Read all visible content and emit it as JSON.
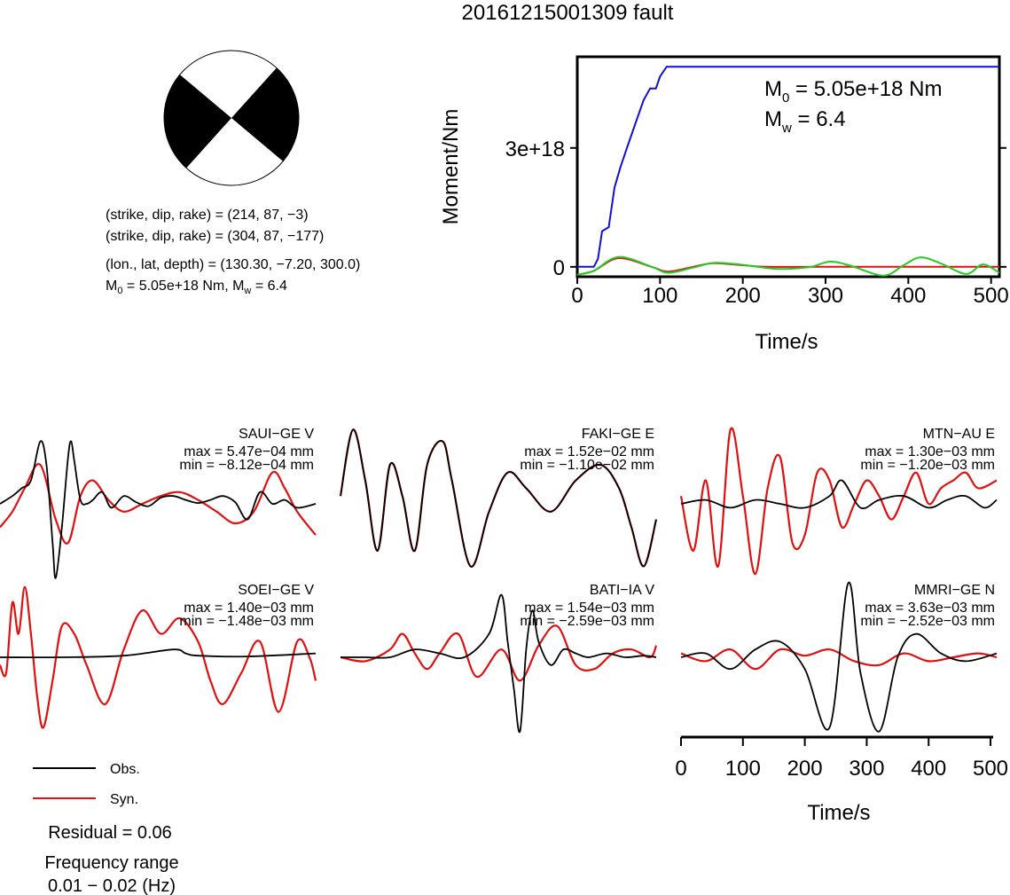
{
  "title": "20161215001309 fault",
  "beachball": {
    "color_fill": "#000000",
    "lines": [
      "(strike, dip, rake) = (214, 87, −3)",
      "(strike, dip, rake) = (304, 87, −177)",
      "(lon., lat, depth) = (130.30, −7.20, 300.0)"
    ],
    "m0_line": {
      "M": "M",
      "sub": "0",
      "rest": " = 5.05e+18 Nm, M",
      "sub2": "w",
      "rest2": " = 6.4"
    }
  },
  "moment_plot": {
    "ylabel": "Moment/Nm",
    "xlabel": "Time/s",
    "yticks": [
      "0",
      "3e+18"
    ],
    "xticks": [
      "0",
      "100",
      "200",
      "300",
      "400",
      "500"
    ],
    "m0_text": {
      "M": "M",
      "sub": "0",
      "rest": " = 5.05e+18 Nm"
    },
    "mw_text": {
      "M": "M",
      "sub": "w",
      "rest": " = 6.4"
    }
  },
  "traces": [
    {
      "station": "SAUI−GE V",
      "max": "max = 5.47e−04 mm",
      "min": "min = −8.12e−04 mm"
    },
    {
      "station": "FAKI−GE E",
      "max": "max = 1.52e−02 mm",
      "min": "min = −1.10e−02 mm"
    },
    {
      "station": "MTN−AU E",
      "max": "max = 1.30e−03 mm",
      "min": "min = −1.20e−03 mm"
    },
    {
      "station": "SOEI−GE V",
      "max": "max = 1.40e−03 mm",
      "min": "min = −1.48e−03 mm"
    },
    {
      "station": "BATI−IA V",
      "max": "max = 1.54e−03 mm",
      "min": "min = −2.59e−03 mm"
    },
    {
      "station": "MMRI−GE N",
      "max": "max = 3.63e−03 mm",
      "min": "min = −2.52e−03 mm"
    }
  ],
  "trace_axis": {
    "xlabel": "Time/s",
    "xticks": [
      "0",
      "100",
      "200",
      "300",
      "400",
      "500"
    ]
  },
  "legend": {
    "obs": "Obs.",
    "syn": "Syn."
  },
  "residual": "Residual = 0.06",
  "freq_label": "Frequency range",
  "freq_range": "0.01 − 0.02 (Hz)",
  "colors": {
    "obs": "#000000",
    "syn": "#e01010",
    "moment_rate": "#1010d0",
    "green": "#22cc22"
  },
  "chart_data": [
    {
      "type": "line",
      "title": "20161215001309 fault",
      "xlabel": "Time/s",
      "ylabel": "Moment/Nm",
      "xlim": [
        0,
        510
      ],
      "ylim": [
        -2.5e+17,
        5.3e+18
      ],
      "series": [
        {
          "x": [
            0,
            10,
            20,
            25,
            30,
            38,
            45,
            52,
            60,
            70,
            80,
            88,
            95,
            100,
            108,
            115,
            200,
            300,
            400,
            510
          ],
          "y": [
            0,
            0,
            0,
            2e+17,
            9e+17,
            1e+18,
            2e+18,
            2.5e+18,
            3e+18,
            3.6e+18,
            4.2e+18,
            4.5e+18,
            4.5e+18,
            4.8e+18,
            5.05e+18,
            5.05e+18,
            5.05e+18,
            5.05e+18,
            5.05e+18,
            5.05e+18
          ]
        },
        {
          "x": [
            0,
            20,
            50,
            90,
            110,
            140,
            165,
            200,
            240,
            280,
            305,
            330,
            370,
            395,
            415,
            440,
            470,
            490,
            510
          ],
          "y": [
            -2e+17,
            -1e+17,
            2.5e+17,
            0,
            -1.5e+17,
            -2e+16,
            1e+17,
            5e+16,
            -5e+16,
            -1e+16,
            1.3e+17,
            3e+16,
            -2.2e+17,
            5e+16,
            2.4e+17,
            8e+16,
            -1.8e+17,
            6e+16,
            -1.5e+17
          ]
        },
        {
          "x": [
            0,
            20,
            50,
            90,
            110,
            140,
            165,
            200,
            230,
            300,
            400,
            510
          ],
          "y": [
            -2e+17,
            -1e+17,
            2.2e+17,
            0,
            -1.2e+17,
            0,
            9e+16,
            4e+16,
            0,
            0,
            0,
            0
          ]
        }
      ]
    },
    {
      "type": "line",
      "title": "SAUI−GE V",
      "xlim": [
        0,
        510
      ],
      "ylim": [
        -1,
        1
      ],
      "series": [
        {
          "name": "Obs.",
          "x": [
            0,
            20,
            35,
            50,
            65,
            75,
            85,
            90,
            100,
            110,
            115,
            120,
            130,
            140,
            150,
            165,
            180,
            200,
            220,
            240,
            260,
            280,
            300,
            320,
            340,
            360,
            380,
            400,
            420,
            440,
            460,
            480,
            510
          ],
          "y": [
            0,
            0.1,
            0.2,
            0.3,
            0.8,
            0.5,
            -0.5,
            -0.95,
            -0.3,
            0.6,
            0.8,
            0.55,
            0.05,
            0,
            0.05,
            0.15,
            -0.05,
            0.1,
            0.02,
            -0.03,
            0.08,
            0.1,
            0.05,
            0.01,
            0.05,
            0.1,
            0.02,
            -0.2,
            0.15,
            0.0,
            0.05,
            -0.05,
            0
          ]
        },
        {
          "name": "Syn.",
          "x": [
            0,
            20,
            40,
            65,
            90,
            110,
            130,
            150,
            175,
            200,
            230,
            260,
            290,
            320,
            350,
            380,
            410,
            440,
            460,
            480,
            510
          ],
          "y": [
            -0.3,
            -0.1,
            0.2,
            0.5,
            -0.2,
            -0.5,
            0.1,
            0.3,
            0.05,
            -0.1,
            0,
            0.1,
            0.15,
            0.05,
            -0.1,
            -0.25,
            -0.1,
            0.4,
            0.2,
            -0.1,
            -0.4
          ]
        }
      ]
    },
    {
      "type": "line",
      "title": "FAKI−GE E",
      "xlim": [
        0,
        510
      ],
      "ylim": [
        -1,
        1
      ],
      "series": [
        {
          "name": "Obs.",
          "x": [
            0,
            20,
            40,
            60,
            80,
            100,
            120,
            140,
            165,
            180,
            210,
            240,
            270,
            300,
            340,
            380,
            420,
            450,
            470,
            490,
            510
          ],
          "y": [
            0.1,
            0.95,
            0.3,
            -0.6,
            0.5,
            0.1,
            -0.6,
            0.5,
            0.8,
            0.3,
            -0.8,
            -0.1,
            0.4,
            0.2,
            -0.1,
            0.3,
            0.5,
            0.2,
            -0.3,
            -0.8,
            -0.2
          ]
        },
        {
          "name": "Syn.",
          "x": [
            0,
            20,
            40,
            60,
            80,
            100,
            120,
            140,
            165,
            180,
            210,
            240,
            270,
            300,
            340,
            380,
            420,
            450,
            470,
            490,
            510
          ],
          "y": [
            0.1,
            0.95,
            0.3,
            -0.6,
            0.5,
            0.1,
            -0.6,
            0.5,
            0.8,
            0.3,
            -0.8,
            -0.1,
            0.4,
            0.2,
            -0.1,
            0.3,
            0.5,
            0.2,
            -0.3,
            -0.8,
            -0.2
          ]
        }
      ]
    },
    {
      "type": "line",
      "title": "MTN−AU E",
      "xlim": [
        0,
        510
      ],
      "ylim": [
        -1,
        1
      ],
      "series": [
        {
          "name": "Obs.",
          "x": [
            0,
            40,
            80,
            120,
            160,
            200,
            240,
            260,
            290,
            320,
            360,
            400,
            430,
            460,
            490,
            510
          ],
          "y": [
            0,
            0.05,
            -0.05,
            0.05,
            0,
            -0.05,
            0.1,
            0.3,
            -0.05,
            0.05,
            0.1,
            -0.05,
            0.05,
            0.1,
            -0.05,
            0.05
          ]
        },
        {
          "name": "Syn.",
          "x": [
            0,
            20,
            40,
            60,
            80,
            100,
            120,
            140,
            160,
            180,
            200,
            220,
            240,
            260,
            280,
            300,
            320,
            340,
            360,
            380,
            400,
            420,
            440,
            460,
            480,
            510
          ],
          "y": [
            0.1,
            -0.6,
            0.3,
            -0.8,
            0.95,
            0.1,
            -0.9,
            0.2,
            0.6,
            -0.5,
            -0.4,
            0.4,
            0.3,
            -0.3,
            0.0,
            0.3,
            0.1,
            -0.2,
            0.1,
            0.4,
            0.0,
            0.2,
            0.3,
            0.4,
            0.2,
            0.3
          ]
        }
      ]
    },
    {
      "type": "line",
      "title": "SOEI−GE V",
      "xlim": [
        0,
        510
      ],
      "ylim": [
        -1,
        1
      ],
      "series": [
        {
          "name": "Obs.",
          "x": [
            0,
            100,
            200,
            280,
            300,
            320,
            400,
            510
          ],
          "y": [
            0,
            0,
            0.02,
            0.1,
            0.05,
            0.02,
            0.01,
            0.05
          ]
        },
        {
          "name": "Syn.",
          "x": [
            0,
            10,
            20,
            30,
            40,
            50,
            60,
            70,
            85,
            100,
            120,
            140,
            170,
            200,
            230,
            260,
            290,
            320,
            340,
            360,
            390,
            420,
            450,
            480,
            500,
            510
          ],
          "y": [
            -0.1,
            -0.2,
            0.7,
            0.3,
            0.9,
            0.3,
            -0.5,
            -0.9,
            -0.3,
            0.4,
            0.3,
            -0.1,
            -0.6,
            0.1,
            0.6,
            0.3,
            0.5,
            0.2,
            -0.3,
            -0.6,
            -0.2,
            0.2,
            -0.7,
            0.2,
            0.0,
            -0.3
          ]
        }
      ]
    },
    {
      "type": "line",
      "title": "BATI−IA V",
      "xlim": [
        0,
        510
      ],
      "ylim": [
        -1,
        1
      ],
      "series": [
        {
          "name": "Obs.",
          "x": [
            0,
            40,
            80,
            120,
            160,
            200,
            240,
            260,
            270,
            280,
            290,
            300,
            310,
            320,
            340,
            360,
            380,
            400,
            430,
            460,
            490,
            510
          ],
          "y": [
            0,
            0,
            0,
            0.1,
            0.05,
            0,
            0.3,
            0.8,
            0.2,
            -0.4,
            -0.95,
            0.1,
            0.6,
            0.2,
            -0.1,
            0.1,
            0.05,
            0,
            0.05,
            0,
            0.02,
            0
          ]
        },
        {
          "name": "Syn.",
          "x": [
            0,
            40,
            80,
            100,
            120,
            140,
            160,
            190,
            220,
            260,
            290,
            320,
            350,
            380,
            410,
            440,
            470,
            500,
            510
          ],
          "y": [
            0,
            -0.05,
            0.1,
            0.3,
            0.05,
            -0.15,
            0.05,
            0.3,
            -0.25,
            0.1,
            -0.3,
            0.15,
            0.4,
            -0.1,
            -0.15,
            0.05,
            0.1,
            0.0,
            0.15
          ]
        }
      ]
    },
    {
      "type": "line",
      "title": "MMRI−GE N",
      "xlim": [
        0,
        510
      ],
      "ylim": [
        -1,
        1
      ],
      "series": [
        {
          "name": "Obs.",
          "x": [
            0,
            40,
            80,
            120,
            160,
            200,
            240,
            270,
            290,
            320,
            350,
            380,
            420,
            460,
            510
          ],
          "y": [
            0,
            0.05,
            -0.15,
            0.1,
            0.2,
            -0.15,
            -0.9,
            0.95,
            -0.2,
            -0.95,
            0.0,
            0.3,
            0.05,
            -0.05,
            0.05
          ]
        },
        {
          "name": "Syn.",
          "x": [
            0,
            40,
            80,
            120,
            160,
            200,
            240,
            280,
            320,
            360,
            400,
            440,
            480,
            510
          ],
          "y": [
            0.05,
            -0.05,
            0.1,
            -0.15,
            0.1,
            0.02,
            0.1,
            -0.05,
            -0.1,
            0.05,
            -0.05,
            0.0,
            0.05,
            0.0
          ]
        }
      ]
    }
  ]
}
